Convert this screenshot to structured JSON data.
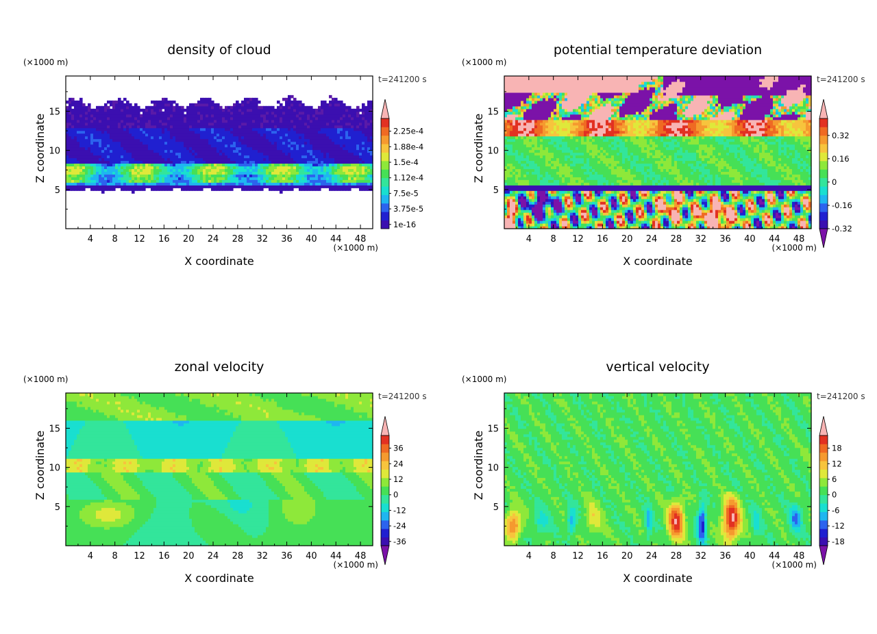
{
  "chart_data": [
    {
      "type": "heatmap",
      "title": "density of cloud",
      "xlabel": "X coordinate",
      "ylabel": "Z coordinate",
      "x_unit": "(×1000 m)",
      "y_unit": "(×1000 m)",
      "time_label": "t=241200 s",
      "xlim": [
        0,
        50
      ],
      "ylim": [
        0,
        19.5
      ],
      "xticks": [
        "4",
        "8",
        "12",
        "16",
        "20",
        "24",
        "28",
        "32",
        "36",
        "40",
        "44",
        "48"
      ],
      "xtick_values": [
        4,
        8,
        12,
        16,
        20,
        24,
        28,
        32,
        36,
        40,
        44,
        48
      ],
      "yticks": [
        "5",
        "10",
        "15"
      ],
      "ytick_values": [
        5,
        10,
        15
      ],
      "colorbar": {
        "levels": [
          "2.25e-4",
          "1.88e-4",
          "1.5e-4",
          "1.12e-4",
          "7.5e-5",
          "3.75e-5",
          "1e-16"
        ],
        "colors": [
          "#5a1aa8",
          "#3b0fb0",
          "#2020d0",
          "#2c63ee",
          "#1fb6f0",
          "#19dfd0",
          "#33e59b",
          "#46e056",
          "#8ee83a",
          "#dfe83a",
          "#f7c43d",
          "#f59a2f",
          "#ef6a23",
          "#e23122",
          "#f8b4b4"
        ],
        "has_over_arrow": true,
        "has_under_arrow": false
      },
      "field": "cloud"
    },
    {
      "type": "heatmap",
      "title": "potential temperature deviation",
      "xlabel": "X coordinate",
      "ylabel": "Z coordinate",
      "x_unit": "(×1000 m)",
      "y_unit": "(×1000 m)",
      "time_label": "t=241200 s",
      "xlim": [
        0,
        50
      ],
      "ylim": [
        0,
        19.5
      ],
      "xticks": [
        "4",
        "8",
        "12",
        "16",
        "20",
        "24",
        "28",
        "32",
        "36",
        "40",
        "44",
        "48"
      ],
      "xtick_values": [
        4,
        8,
        12,
        16,
        20,
        24,
        28,
        32,
        36,
        40,
        44,
        48
      ],
      "yticks": [
        "5",
        "10",
        "15"
      ],
      "ytick_values": [
        5,
        10,
        15
      ],
      "colorbar": {
        "levels": [
          "0.32",
          "0.16",
          "0",
          "-0.16",
          "-0.32"
        ],
        "colors": [
          "#7b12a8",
          "#3b0fb0",
          "#2020d0",
          "#2c63ee",
          "#1fb6f0",
          "#19dfd0",
          "#33e59b",
          "#46e056",
          "#8ee83a",
          "#dfe83a",
          "#f7c43d",
          "#f59a2f",
          "#ef6a23",
          "#e23122",
          "#f8b4b4"
        ],
        "has_over_arrow": true,
        "has_under_arrow": true
      },
      "field": "theta"
    },
    {
      "type": "heatmap",
      "title": "zonal velocity",
      "xlabel": "X coordinate",
      "ylabel": "Z coordinate",
      "x_unit": "(×1000 m)",
      "y_unit": "(×1000 m)",
      "time_label": "t=241200 s",
      "xlim": [
        0,
        50
      ],
      "ylim": [
        0,
        19.5
      ],
      "xticks": [
        "4",
        "8",
        "12",
        "16",
        "20",
        "24",
        "28",
        "32",
        "36",
        "40",
        "44",
        "48"
      ],
      "xtick_values": [
        4,
        8,
        12,
        16,
        20,
        24,
        28,
        32,
        36,
        40,
        44,
        48
      ],
      "yticks": [
        "5",
        "10",
        "15"
      ],
      "ytick_values": [
        5,
        10,
        15
      ],
      "colorbar": {
        "levels": [
          "36",
          "24",
          "12",
          "0",
          "-12",
          "-24",
          "-36"
        ],
        "colors": [
          "#7b12a8",
          "#3b0fb0",
          "#2020d0",
          "#2c63ee",
          "#1fb6f0",
          "#19dfd0",
          "#33e59b",
          "#46e056",
          "#8ee83a",
          "#dfe83a",
          "#f7c43d",
          "#f59a2f",
          "#ef6a23",
          "#e23122",
          "#f8b4b4"
        ],
        "has_over_arrow": true,
        "has_under_arrow": true
      },
      "field": "u"
    },
    {
      "type": "heatmap",
      "title": "vertical velocity",
      "xlabel": "X coordinate",
      "ylabel": "Z coordinate",
      "x_unit": "(×1000 m)",
      "y_unit": "(×1000 m)",
      "time_label": "t=241200 s",
      "xlim": [
        0,
        50
      ],
      "ylim": [
        0,
        19.5
      ],
      "xticks": [
        "4",
        "8",
        "12",
        "16",
        "20",
        "24",
        "28",
        "32",
        "36",
        "40",
        "44",
        "48"
      ],
      "xtick_values": [
        4,
        8,
        12,
        16,
        20,
        24,
        28,
        32,
        36,
        40,
        44,
        48
      ],
      "yticks": [
        "5",
        "10",
        "15"
      ],
      "ytick_values": [
        5,
        10,
        15
      ],
      "colorbar": {
        "levels": [
          "18",
          "12",
          "6",
          "0",
          "-6",
          "-12",
          "-18"
        ],
        "colors": [
          "#7b12a8",
          "#3b0fb0",
          "#2020d0",
          "#2c63ee",
          "#1fb6f0",
          "#19dfd0",
          "#33e59b",
          "#46e056",
          "#8ee83a",
          "#dfe83a",
          "#f7c43d",
          "#f59a2f",
          "#ef6a23",
          "#e23122",
          "#f8b4b4"
        ],
        "has_over_arrow": true,
        "has_under_arrow": true
      },
      "field": "w"
    }
  ]
}
